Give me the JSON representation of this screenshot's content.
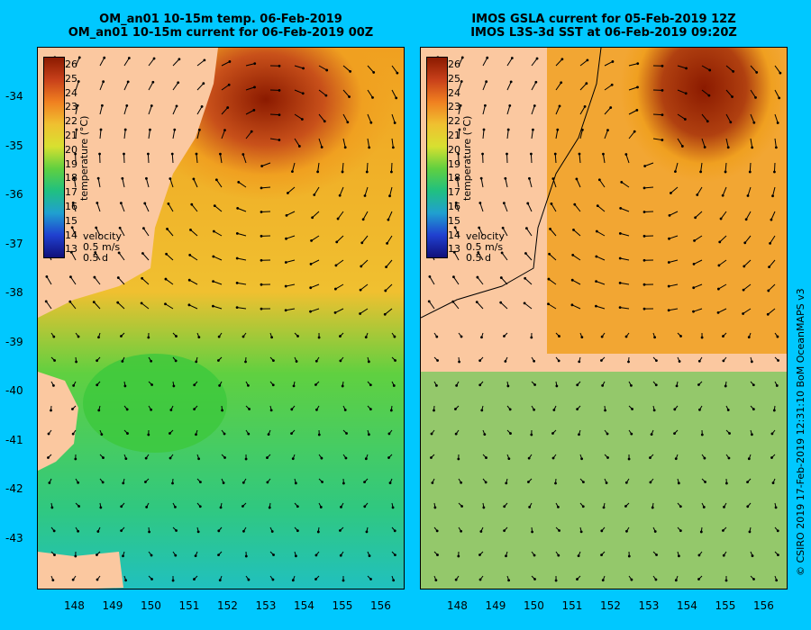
{
  "left_panel": {
    "title_line1": "OM_an01 10-15m temp. 06-Feb-2019",
    "title_line2": "OM_an01 10-15m current for 06-Feb-2019 00Z"
  },
  "right_panel": {
    "title_line1": "IMOS GSLA current for 05-Feb-2019 12Z",
    "title_line2": "IMOS L3S-3d SST at 06-Feb-2019 09:20Z"
  },
  "colorbar": {
    "label": "temperature (°C)",
    "ticks": [
      "26",
      "25",
      "24",
      "23",
      "22",
      "21",
      "20",
      "19",
      "18",
      "17",
      "16",
      "15",
      "14",
      "13"
    ]
  },
  "velocity_legend": {
    "label": "velocity",
    "speed": "0.5 m/s",
    "time": "0.5 d"
  },
  "y_axis": [
    "-34",
    "-35",
    "-36",
    "-37",
    "-38",
    "-39",
    "-40",
    "-41",
    "-42",
    "-43"
  ],
  "x_axis": [
    "148",
    "149",
    "150",
    "151",
    "152",
    "153",
    "154",
    "155",
    "156"
  ],
  "credit": "© CSIRO 2019   17-Feb-2019 12:31:10 BoM OceanMAPS v3",
  "colors": {
    "land": "#fbc8a0",
    "background": "#00c8ff",
    "warm_core": "#8b1a00",
    "mid": "#f0a020",
    "cool": "#3cc83c"
  }
}
